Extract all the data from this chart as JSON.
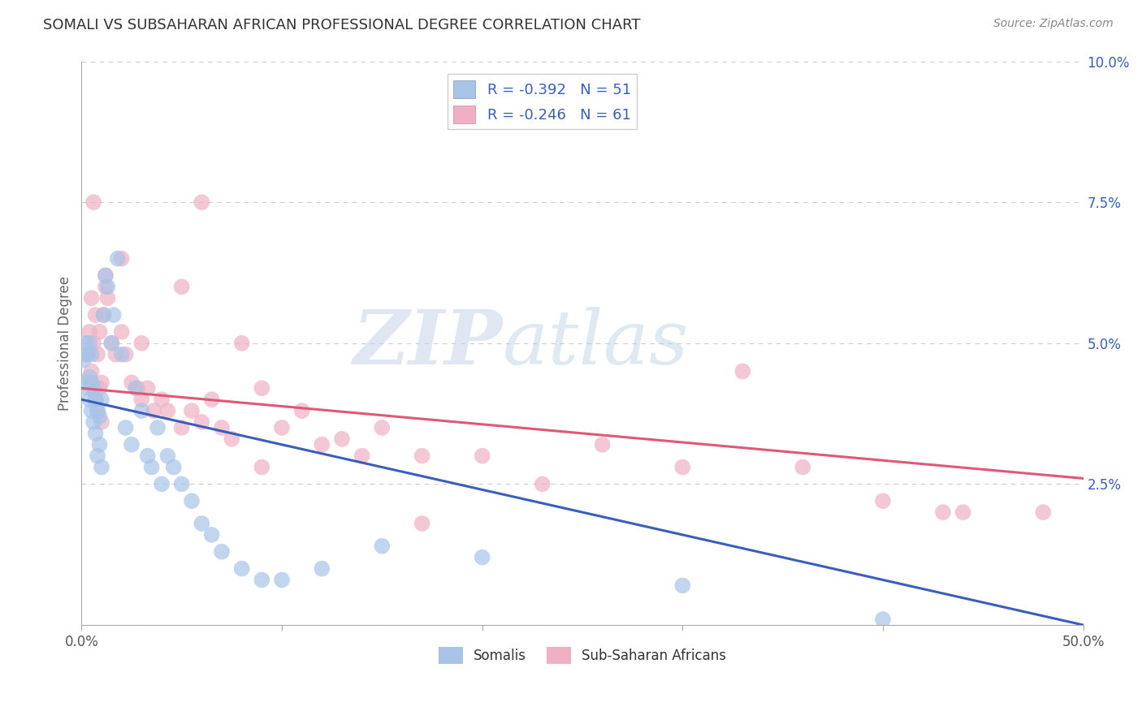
{
  "title": "SOMALI VS SUBSAHARAN AFRICAN PROFESSIONAL DEGREE CORRELATION CHART",
  "source": "Source: ZipAtlas.com",
  "ylabel": "Professional Degree",
  "xlim": [
    0,
    0.5
  ],
  "ylim": [
    0,
    0.1
  ],
  "xticks": [
    0.0,
    0.1,
    0.2,
    0.3,
    0.4,
    0.5
  ],
  "xticklabels": [
    "0.0%",
    "",
    "",
    "",
    "",
    "50.0%"
  ],
  "yticks": [
    0.0,
    0.025,
    0.05,
    0.075,
    0.1
  ],
  "yticklabels": [
    "",
    "2.5%",
    "5.0%",
    "7.5%",
    "10.0%"
  ],
  "grid_color": "#cccccc",
  "background_color": "#ffffff",
  "somali_color": "#a8c4e8",
  "subsaharan_color": "#f0b0c4",
  "somali_line_color": "#3a5fba",
  "subsaharan_line_color": "#e05878",
  "somali_R": -0.392,
  "somali_N": 51,
  "subsaharan_R": -0.246,
  "subsaharan_N": 61,
  "legend_label_somali": "Somalis",
  "legend_label_subsaharan": "Sub-Saharan Africans",
  "watermark_zip": "ZIP",
  "watermark_atlas": "atlas",
  "somali_x": [
    0.001,
    0.002,
    0.002,
    0.003,
    0.003,
    0.004,
    0.004,
    0.004,
    0.005,
    0.005,
    0.005,
    0.006,
    0.006,
    0.007,
    0.007,
    0.008,
    0.008,
    0.009,
    0.009,
    0.01,
    0.01,
    0.011,
    0.012,
    0.013,
    0.015,
    0.016,
    0.018,
    0.02,
    0.022,
    0.025,
    0.027,
    0.03,
    0.033,
    0.035,
    0.038,
    0.04,
    0.043,
    0.046,
    0.05,
    0.055,
    0.06,
    0.065,
    0.07,
    0.08,
    0.09,
    0.1,
    0.12,
    0.15,
    0.2,
    0.3,
    0.4
  ],
  "somali_y": [
    0.047,
    0.043,
    0.05,
    0.042,
    0.048,
    0.04,
    0.044,
    0.05,
    0.038,
    0.043,
    0.048,
    0.036,
    0.042,
    0.034,
    0.04,
    0.03,
    0.038,
    0.032,
    0.037,
    0.028,
    0.04,
    0.055,
    0.062,
    0.06,
    0.05,
    0.055,
    0.065,
    0.048,
    0.035,
    0.032,
    0.042,
    0.038,
    0.03,
    0.028,
    0.035,
    0.025,
    0.03,
    0.028,
    0.025,
    0.022,
    0.018,
    0.016,
    0.013,
    0.01,
    0.008,
    0.008,
    0.01,
    0.014,
    0.012,
    0.007,
    0.001
  ],
  "subsaharan_x": [
    0.003,
    0.004,
    0.005,
    0.005,
    0.006,
    0.006,
    0.007,
    0.007,
    0.008,
    0.008,
    0.009,
    0.009,
    0.01,
    0.01,
    0.011,
    0.012,
    0.013,
    0.015,
    0.017,
    0.02,
    0.022,
    0.025,
    0.028,
    0.03,
    0.033,
    0.036,
    0.04,
    0.043,
    0.05,
    0.055,
    0.06,
    0.065,
    0.07,
    0.075,
    0.08,
    0.09,
    0.1,
    0.11,
    0.12,
    0.13,
    0.14,
    0.15,
    0.17,
    0.2,
    0.23,
    0.26,
    0.3,
    0.33,
    0.36,
    0.4,
    0.44,
    0.48,
    0.006,
    0.012,
    0.02,
    0.03,
    0.05,
    0.06,
    0.09,
    0.17,
    0.43
  ],
  "subsaharan_y": [
    0.048,
    0.052,
    0.045,
    0.058,
    0.042,
    0.05,
    0.04,
    0.055,
    0.038,
    0.048,
    0.042,
    0.052,
    0.036,
    0.043,
    0.055,
    0.06,
    0.058,
    0.05,
    0.048,
    0.052,
    0.048,
    0.043,
    0.042,
    0.04,
    0.042,
    0.038,
    0.04,
    0.038,
    0.035,
    0.038,
    0.036,
    0.04,
    0.035,
    0.033,
    0.05,
    0.042,
    0.035,
    0.038,
    0.032,
    0.033,
    0.03,
    0.035,
    0.03,
    0.03,
    0.025,
    0.032,
    0.028,
    0.045,
    0.028,
    0.022,
    0.02,
    0.02,
    0.075,
    0.062,
    0.065,
    0.05,
    0.06,
    0.075,
    0.028,
    0.018,
    0.02
  ],
  "blue_line_x": [
    0.0,
    0.5
  ],
  "blue_line_y": [
    0.04,
    0.0
  ],
  "pink_line_x": [
    0.0,
    0.5
  ],
  "pink_line_y": [
    0.042,
    0.026
  ]
}
